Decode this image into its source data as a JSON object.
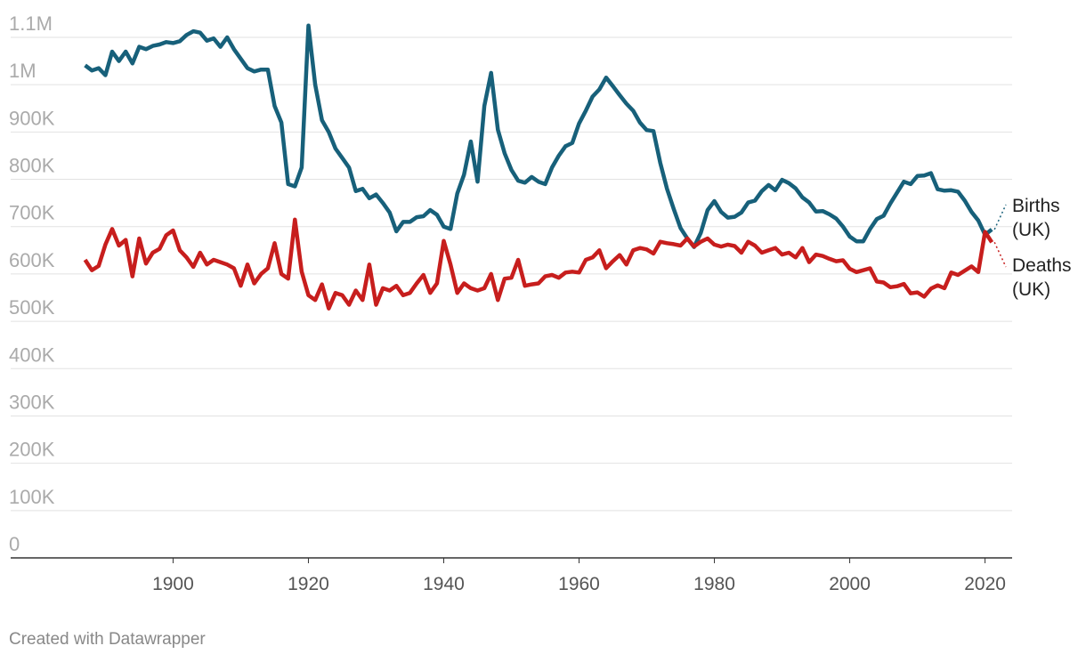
{
  "chart_data": {
    "type": "line",
    "x": [
      1887,
      1888,
      1889,
      1890,
      1891,
      1892,
      1893,
      1894,
      1895,
      1896,
      1897,
      1898,
      1899,
      1900,
      1901,
      1902,
      1903,
      1904,
      1905,
      1906,
      1907,
      1908,
      1909,
      1910,
      1911,
      1912,
      1913,
      1914,
      1915,
      1916,
      1917,
      1918,
      1919,
      1920,
      1921,
      1922,
      1923,
      1924,
      1925,
      1926,
      1927,
      1928,
      1929,
      1930,
      1931,
      1932,
      1933,
      1934,
      1935,
      1936,
      1937,
      1938,
      1939,
      1940,
      1941,
      1942,
      1943,
      1944,
      1945,
      1946,
      1947,
      1948,
      1949,
      1950,
      1951,
      1952,
      1953,
      1954,
      1955,
      1956,
      1957,
      1958,
      1959,
      1960,
      1961,
      1962,
      1963,
      1964,
      1965,
      1966,
      1967,
      1968,
      1969,
      1970,
      1971,
      1972,
      1973,
      1974,
      1975,
      1976,
      1977,
      1978,
      1979,
      1980,
      1981,
      1982,
      1983,
      1984,
      1985,
      1986,
      1987,
      1988,
      1989,
      1990,
      1991,
      1992,
      1993,
      1994,
      1995,
      1996,
      1997,
      1998,
      1999,
      2000,
      2001,
      2002,
      2003,
      2004,
      2005,
      2006,
      2007,
      2008,
      2009,
      2010,
      2011,
      2012,
      2013,
      2014,
      2015,
      2016,
      2017,
      2018,
      2019,
      2020,
      2021
    ],
    "series": [
      {
        "name": "Births (UK)",
        "color": "#17607a",
        "values": [
          1041000,
          1030000,
          1035000,
          1020000,
          1070000,
          1050000,
          1070000,
          1045000,
          1080000,
          1075000,
          1082000,
          1085000,
          1090000,
          1088000,
          1092000,
          1105000,
          1113000,
          1110000,
          1093000,
          1098000,
          1080000,
          1100000,
          1075000,
          1055000,
          1035000,
          1028000,
          1032000,
          1032000,
          955000,
          920000,
          790000,
          785000,
          825000,
          1125000,
          1000000,
          925000,
          900000,
          865000,
          845000,
          825000,
          775000,
          780000,
          760000,
          768000,
          750000,
          730000,
          690000,
          710000,
          710000,
          720000,
          722000,
          735000,
          725000,
          700000,
          695000,
          770000,
          810000,
          880000,
          795000,
          955000,
          1025000,
          905000,
          855000,
          820000,
          797000,
          793000,
          805000,
          795000,
          790000,
          825000,
          850000,
          870000,
          877000,
          918000,
          945000,
          975000,
          990000,
          1015000,
          997000,
          978000,
          960000,
          945000,
          920000,
          904000,
          902000,
          835000,
          780000,
          737000,
          697000,
          675000,
          657000,
          687000,
          735000,
          754000,
          731000,
          719000,
          721000,
          730000,
          751000,
          755000,
          775000,
          788000,
          777000,
          799000,
          792000,
          781000,
          762000,
          751000,
          732000,
          733000,
          726000,
          717000,
          700000,
          679000,
          669000,
          669000,
          695000,
          716000,
          723000,
          749000,
          772000,
          795000,
          790000,
          807000,
          808000,
          813000,
          779000,
          776000,
          777000,
          774000,
          755000,
          731000,
          713000,
          683000,
          694000
        ]
      },
      {
        "name": "Deaths (UK)",
        "color": "#c71e1d",
        "values": [
          630000,
          608000,
          617000,
          662000,
          695000,
          660000,
          672000,
          595000,
          675000,
          622000,
          645000,
          653000,
          682000,
          692000,
          650000,
          635000,
          615000,
          645000,
          620000,
          630000,
          625000,
          620000,
          612000,
          575000,
          620000,
          580000,
          600000,
          612000,
          665000,
          600000,
          590000,
          715000,
          605000,
          555000,
          545000,
          578000,
          527000,
          560000,
          555000,
          535000,
          565000,
          545000,
          620000,
          535000,
          570000,
          565000,
          575000,
          555000,
          560000,
          580000,
          598000,
          560000,
          580000,
          670000,
          620000,
          560000,
          580000,
          570000,
          565000,
          570000,
          600000,
          545000,
          590000,
          592000,
          630000,
          575000,
          578000,
          580000,
          595000,
          598000,
          592000,
          603000,
          605000,
          603000,
          630000,
          635000,
          650000,
          612000,
          627000,
          640000,
          620000,
          650000,
          655000,
          652000,
          643000,
          668000,
          665000,
          663000,
          660000,
          675000,
          658000,
          668000,
          675000,
          662000,
          658000,
          662000,
          659000,
          645000,
          668000,
          660000,
          645000,
          650000,
          655000,
          641000,
          645000,
          635000,
          655000,
          625000,
          641000,
          638000,
          632000,
          627000,
          629000,
          611000,
          604000,
          608000,
          612000,
          584000,
          582000,
          572000,
          574000,
          579000,
          559000,
          561000,
          552000,
          569000,
          576000,
          570000,
          603000,
          598000,
          607000,
          616000,
          604000,
          689000,
          667000
        ]
      }
    ],
    "xlim": [
      1876,
      2024
    ],
    "xticks": [
      1900,
      1920,
      1940,
      1960,
      1980,
      2000,
      2020
    ],
    "ylim": [
      0,
      1100000
    ],
    "yticks": [
      0,
      {
        "value": 100000,
        "label": "100K"
      },
      {
        "value": 200000,
        "label": "200K"
      },
      {
        "value": 300000,
        "label": "300K"
      },
      {
        "value": 400000,
        "label": "400K"
      },
      {
        "value": 500000,
        "label": "500K"
      },
      {
        "value": 600000,
        "label": "600K"
      },
      {
        "value": 700000,
        "label": "700K"
      },
      {
        "value": 800000,
        "label": "800K"
      },
      {
        "value": 900000,
        "label": "900K"
      },
      {
        "value": 1000000,
        "label": "1M"
      },
      {
        "value": 1100000,
        "label": "1.1M"
      }
    ],
    "grid": true
  },
  "footer": "Created with Datawrapper"
}
